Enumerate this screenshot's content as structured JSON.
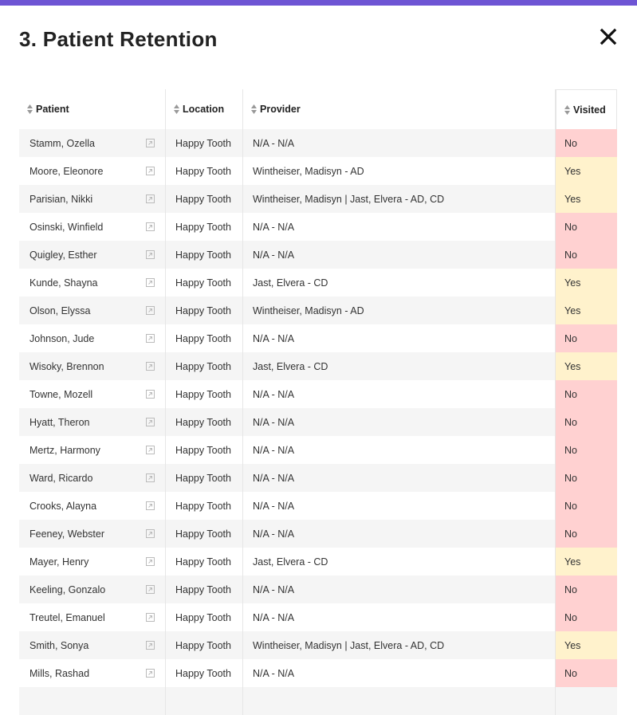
{
  "header": {
    "title": "3. Patient Retention"
  },
  "table": {
    "columns": [
      "Patient",
      "Location",
      "Provider",
      "Visited"
    ],
    "rows": [
      {
        "patient": "Stamm, Ozella",
        "location": "Happy Tooth",
        "provider": "N/A - N/A",
        "visited": "No",
        "visited_color": "#ffd1d1"
      },
      {
        "patient": "Moore, Eleonore",
        "location": "Happy Tooth",
        "provider": "Wintheiser, Madisyn - AD",
        "visited": "Yes",
        "visited_color": "#fff2cc"
      },
      {
        "patient": "Parisian, Nikki",
        "location": "Happy Tooth",
        "provider": "Wintheiser, Madisyn | Jast, Elvera - AD, CD",
        "visited": "Yes",
        "visited_color": "#fff2cc"
      },
      {
        "patient": "Osinski, Winfield",
        "location": "Happy Tooth",
        "provider": "N/A - N/A",
        "visited": "No",
        "visited_color": "#ffd1d1"
      },
      {
        "patient": "Quigley, Esther",
        "location": "Happy Tooth",
        "provider": "N/A - N/A",
        "visited": "No",
        "visited_color": "#ffd1d1"
      },
      {
        "patient": "Kunde, Shayna",
        "location": "Happy Tooth",
        "provider": "Jast, Elvera - CD",
        "visited": "Yes",
        "visited_color": "#fff2cc"
      },
      {
        "patient": "Olson, Elyssa",
        "location": "Happy Tooth",
        "provider": "Wintheiser, Madisyn - AD",
        "visited": "Yes",
        "visited_color": "#fff2cc"
      },
      {
        "patient": "Johnson, Jude",
        "location": "Happy Tooth",
        "provider": "N/A - N/A",
        "visited": "No",
        "visited_color": "#ffd1d1"
      },
      {
        "patient": "Wisoky, Brennon",
        "location": "Happy Tooth",
        "provider": "Jast, Elvera - CD",
        "visited": "Yes",
        "visited_color": "#fff2cc"
      },
      {
        "patient": "Towne, Mozell",
        "location": "Happy Tooth",
        "provider": "N/A - N/A",
        "visited": "No",
        "visited_color": "#ffd1d1"
      },
      {
        "patient": "Hyatt, Theron",
        "location": "Happy Tooth",
        "provider": "N/A - N/A",
        "visited": "No",
        "visited_color": "#ffd1d1"
      },
      {
        "patient": "Mertz, Harmony",
        "location": "Happy Tooth",
        "provider": "N/A - N/A",
        "visited": "No",
        "visited_color": "#ffd1d1"
      },
      {
        "patient": "Ward, Ricardo",
        "location": "Happy Tooth",
        "provider": "N/A - N/A",
        "visited": "No",
        "visited_color": "#ffd1d1"
      },
      {
        "patient": "Crooks, Alayna",
        "location": "Happy Tooth",
        "provider": "N/A - N/A",
        "visited": "No",
        "visited_color": "#ffd1d1"
      },
      {
        "patient": "Feeney, Webster",
        "location": "Happy Tooth",
        "provider": "N/A - N/A",
        "visited": "No",
        "visited_color": "#ffd1d1"
      },
      {
        "patient": "Mayer, Henry",
        "location": "Happy Tooth",
        "provider": "Jast, Elvera - CD",
        "visited": "Yes",
        "visited_color": "#fff2cc"
      },
      {
        "patient": "Keeling, Gonzalo",
        "location": "Happy Tooth",
        "provider": "N/A - N/A",
        "visited": "No",
        "visited_color": "#ffd1d1"
      },
      {
        "patient": "Treutel, Emanuel",
        "location": "Happy Tooth",
        "provider": "N/A - N/A",
        "visited": "No",
        "visited_color": "#ffd1d1"
      },
      {
        "patient": "Smith, Sonya",
        "location": "Happy Tooth",
        "provider": "Wintheiser, Madisyn | Jast, Elvera - AD, CD",
        "visited": "Yes",
        "visited_color": "#fff2cc"
      },
      {
        "patient": "Mills, Rashad",
        "location": "Happy Tooth",
        "provider": "N/A - N/A",
        "visited": "No",
        "visited_color": "#ffd1d1"
      }
    ]
  }
}
